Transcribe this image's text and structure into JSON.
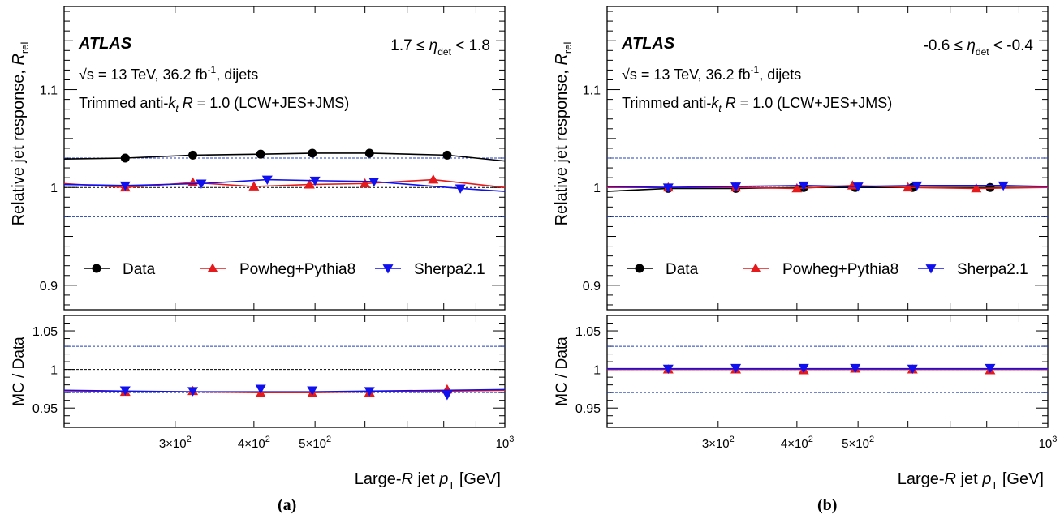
{
  "colors": {
    "data": "#000000",
    "powheg": "#e41a1c",
    "sherpa": "#1010ee",
    "band": "#1f3fbf"
  },
  "chart_data": [
    {
      "type": "line",
      "panel_label": "(a)",
      "experiment": "ATLAS",
      "energy_line": "√s = 13 TeV, 36.2 fb⁻¹, dijets",
      "jet_line": "Trimmed anti-kt R = 1.0 (LCW+JES+JMS)",
      "eta_range": "1.7 ≤ η_det < 1.8",
      "ylabel": "Relative jet response, R_rel",
      "ratio_ylabel": "MC / Data",
      "xlabel": "Large-R jet p_T [GeV]",
      "x_scale": "log",
      "xlim": [
        200,
        1000
      ],
      "ylim": [
        0.875,
        1.185
      ],
      "ratio_ylim": [
        0.925,
        1.07
      ],
      "x_ticks": [
        "3×10²",
        "4×10²",
        "5×10²",
        "10³"
      ],
      "legend": {
        "placement": "bottom",
        "entries": [
          "Data",
          "Powheg+Pythia8",
          "Sherpa2.1"
        ]
      },
      "uncertainty_band": {
        "main": [
          0.97,
          1.0,
          1.03
        ],
        "ratio": [
          0.97,
          1.0,
          1.03
        ]
      },
      "series": [
        {
          "name": "Data",
          "marker": "circle",
          "x": [
            250,
            320,
            410,
            495,
            610,
            810
          ],
          "y": [
            1.03,
            1.033,
            1.034,
            1.035,
            1.035,
            1.033
          ],
          "fit_x": [
            200,
            250,
            320,
            410,
            495,
            610,
            810,
            1000
          ],
          "fit_y": [
            1.029,
            1.03,
            1.033,
            1.034,
            1.035,
            1.035,
            1.033,
            1.027
          ]
        },
        {
          "name": "Powheg+Pythia8",
          "marker": "triangle-up",
          "x": [
            250,
            320,
            400,
            490,
            600,
            770
          ],
          "y": [
            1.0,
            1.005,
            1.001,
            1.003,
            1.004,
            1.008
          ],
          "fit_x": [
            200,
            250,
            320,
            400,
            490,
            600,
            770,
            1000
          ],
          "fit_y": [
            1.004,
            1.0,
            1.005,
            1.001,
            1.003,
            1.004,
            1.008,
            1.0
          ]
        },
        {
          "name": "Sherpa2.1",
          "marker": "triangle-down",
          "x": [
            250,
            330,
            420,
            500,
            620,
            850
          ],
          "y": [
            1.002,
            1.004,
            1.008,
            1.007,
            1.006,
            0.999
          ],
          "fit_x": [
            200,
            250,
            330,
            420,
            500,
            620,
            850,
            1000
          ],
          "fit_y": [
            1.003,
            1.002,
            1.004,
            1.008,
            1.007,
            1.006,
            0.999,
            0.996
          ]
        }
      ],
      "ratio_series": [
        {
          "name": "Powheg+Pythia8",
          "marker": "triangle-up",
          "x": [
            250,
            320,
            410,
            495,
            610,
            810
          ],
          "y": [
            0.971,
            0.972,
            0.969,
            0.969,
            0.97,
            0.974
          ],
          "fit_x": [
            200,
            250,
            320,
            410,
            495,
            610,
            810,
            1000
          ],
          "fit_y": [
            0.971,
            0.971,
            0.971,
            0.97,
            0.97,
            0.971,
            0.972,
            0.973
          ]
        },
        {
          "name": "Sherpa2.1",
          "marker": "triangle-down",
          "x": [
            250,
            320,
            410,
            495,
            610,
            810
          ],
          "y": [
            0.973,
            0.972,
            0.975,
            0.973,
            0.972,
            0.967
          ],
          "fit_x": [
            200,
            250,
            320,
            410,
            495,
            610,
            810,
            1000
          ],
          "fit_y": [
            0.973,
            0.972,
            0.971,
            0.971,
            0.971,
            0.972,
            0.973,
            0.974
          ]
        }
      ]
    },
    {
      "type": "line",
      "panel_label": "(b)",
      "experiment": "ATLAS",
      "energy_line": "√s = 13 TeV, 36.2 fb⁻¹, dijets",
      "jet_line": "Trimmed anti-kt R = 1.0 (LCW+JES+JMS)",
      "eta_range": "-0.6 ≤ η_det < -0.4",
      "ylabel": "Relative jet response, R_rel",
      "ratio_ylabel": "MC / Data",
      "xlabel": "Large-R jet p_T [GeV]",
      "x_scale": "log",
      "xlim": [
        200,
        1000
      ],
      "ylim": [
        0.875,
        1.185
      ],
      "ratio_ylim": [
        0.925,
        1.07
      ],
      "x_ticks": [
        "3×10²",
        "4×10²",
        "5×10²",
        "10³"
      ],
      "legend": {
        "placement": "bottom",
        "entries": [
          "Data",
          "Powheg+Pythia8",
          "Sherpa2.1"
        ]
      },
      "uncertainty_band": {
        "main": [
          0.97,
          1.0,
          1.03
        ],
        "ratio": [
          0.97,
          1.0,
          1.03
        ]
      },
      "series": [
        {
          "name": "Data",
          "marker": "circle",
          "x": [
            250,
            320,
            410,
            495,
            610,
            810
          ],
          "y": [
            0.999,
            0.999,
            1.0,
            1.0,
            1.0,
            1.0
          ],
          "fit_x": [
            200,
            250,
            320,
            410,
            495,
            610,
            810,
            1000
          ],
          "fit_y": [
            0.996,
            0.999,
            0.999,
            1.0,
            1.0,
            1.0,
            1.0,
            1.0
          ]
        },
        {
          "name": "Powheg+Pythia8",
          "marker": "triangle-up",
          "x": [
            250,
            320,
            400,
            490,
            600,
            770
          ],
          "y": [
            1.0,
            1.0,
            0.999,
            1.002,
            1.0,
            0.999
          ],
          "fit_x": [
            200,
            250,
            320,
            400,
            490,
            600,
            770,
            1000
          ],
          "fit_y": [
            1.0,
            1.0,
            1.0,
            0.999,
            1.002,
            1.0,
            0.999,
            1.0
          ]
        },
        {
          "name": "Sherpa2.1",
          "marker": "triangle-down",
          "x": [
            250,
            320,
            410,
            500,
            620,
            850
          ],
          "y": [
            1.0,
            1.001,
            1.002,
            1.001,
            1.002,
            1.002
          ],
          "fit_x": [
            200,
            250,
            320,
            410,
            500,
            620,
            850,
            1000
          ],
          "fit_y": [
            1.001,
            1.0,
            1.001,
            1.002,
            1.001,
            1.002,
            1.002,
            1.001
          ]
        }
      ],
      "ratio_series": [
        {
          "name": "Powheg+Pythia8",
          "marker": "triangle-up",
          "x": [
            250,
            320,
            410,
            495,
            610,
            810
          ],
          "y": [
            1.0,
            1.0,
            0.999,
            1.001,
            1.0,
            0.999
          ],
          "fit_x": [
            200,
            250,
            320,
            410,
            495,
            610,
            810,
            1000
          ],
          "fit_y": [
            1.0,
            1.0,
            1.0,
            1.0,
            1.0,
            1.0,
            1.0,
            1.0
          ]
        },
        {
          "name": "Sherpa2.1",
          "marker": "triangle-down",
          "x": [
            250,
            320,
            410,
            495,
            610,
            810
          ],
          "y": [
            1.001,
            1.002,
            1.002,
            1.002,
            1.001,
            1.002
          ],
          "fit_x": [
            200,
            250,
            320,
            410,
            495,
            610,
            810,
            1000
          ],
          "fit_y": [
            1.001,
            1.001,
            1.001,
            1.001,
            1.001,
            1.001,
            1.001,
            1.001
          ]
        }
      ]
    }
  ]
}
